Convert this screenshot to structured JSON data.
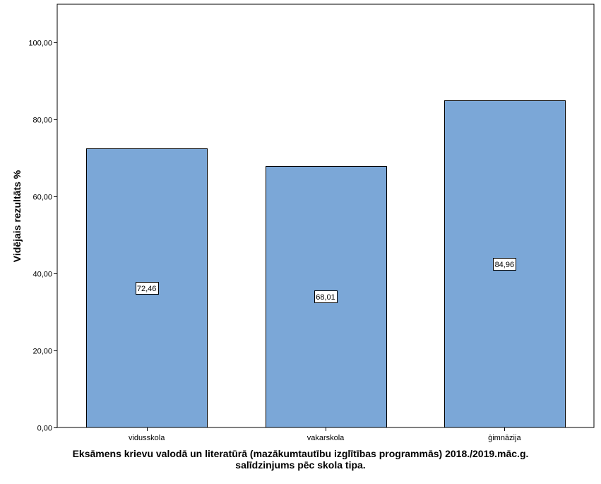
{
  "chart_data": {
    "type": "bar",
    "categories": [
      "vidusskola",
      "vakarskola",
      "ģimnāzija"
    ],
    "values": [
      72.46,
      68.01,
      84.96
    ],
    "data_labels": [
      "72,46",
      "68,01",
      "84,96"
    ],
    "ylabel": "Vidējais rezultāts %",
    "xlabel_line1": "Eksāmens krievu valodā un literatūrā (mazākumtautību izglītības programmās) 2018./2019.māc.g.",
    "xlabel_line2": "salīdzinjums pēc skola tipa.",
    "ylim": [
      0,
      110
    ],
    "yticks": [
      0,
      20,
      40,
      60,
      80,
      100
    ],
    "ytick_labels": [
      "0,00",
      "20,00",
      "40,00",
      "60,00",
      "80,00",
      "100,00"
    ],
    "grid": false,
    "legend": "none",
    "bar_color": "#7BA7D7",
    "bar_edge_color": "#000000"
  }
}
